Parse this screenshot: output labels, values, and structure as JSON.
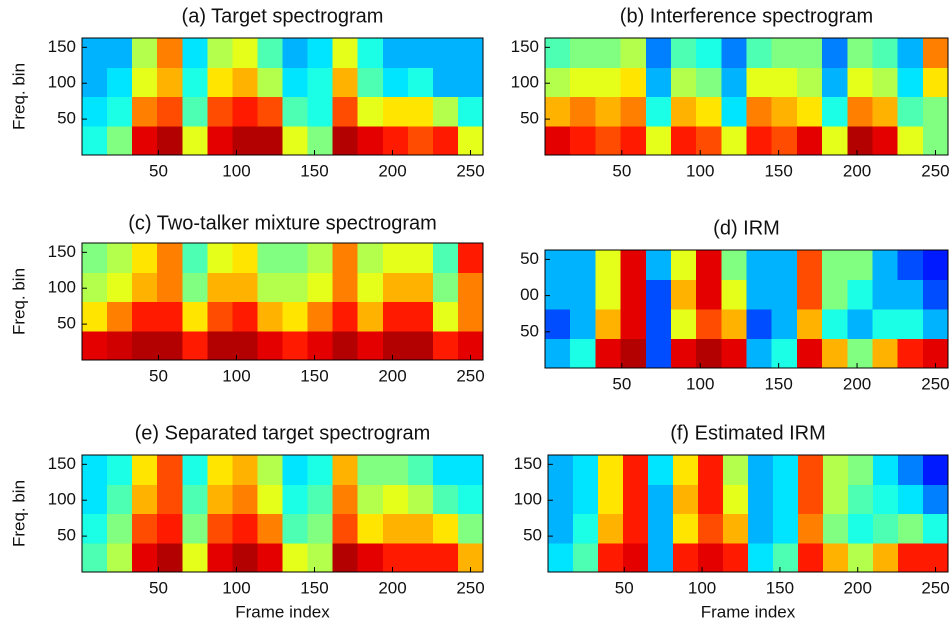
{
  "chart_data": [
    {
      "type": "heatmap",
      "title": "(a) Target spectrogram",
      "ylabel": "Freq. bin",
      "colormap": "jet",
      "xlim": [
        1,
        258
      ],
      "ylim": [
        0,
        163
      ],
      "xticks": [
        50,
        100,
        150,
        200,
        250
      ],
      "yticks": [
        50,
        100,
        150
      ],
      "z": [
        [
          0.4,
          0.5,
          0.9,
          0.95,
          0.6,
          0.9,
          0.95,
          0.95,
          0.6,
          0.5,
          0.95,
          0.9,
          0.85,
          0.8,
          0.85,
          0.6
        ],
        [
          0.35,
          0.4,
          0.75,
          0.8,
          0.45,
          0.8,
          0.85,
          0.8,
          0.45,
          0.4,
          0.8,
          0.6,
          0.65,
          0.65,
          0.55,
          0.4
        ],
        [
          0.3,
          0.35,
          0.6,
          0.7,
          0.4,
          0.65,
          0.7,
          0.55,
          0.35,
          0.4,
          0.7,
          0.45,
          0.35,
          0.4,
          0.3,
          0.3
        ],
        [
          0.3,
          0.3,
          0.55,
          0.75,
          0.35,
          0.55,
          0.6,
          0.45,
          0.3,
          0.35,
          0.6,
          0.4,
          0.3,
          0.3,
          0.3,
          0.3
        ]
      ]
    },
    {
      "type": "heatmap",
      "title": "(b) Interference spectrogram",
      "colormap": "jet",
      "xlim": [
        1,
        258
      ],
      "ylim": [
        0,
        163
      ],
      "xticks": [
        50,
        100,
        150,
        200,
        250
      ],
      "yticks": [
        50,
        100,
        150
      ],
      "z": [
        [
          0.9,
          0.85,
          0.8,
          0.85,
          0.6,
          0.85,
          0.8,
          0.6,
          0.85,
          0.8,
          0.9,
          0.6,
          0.95,
          0.9,
          0.6,
          0.5
        ],
        [
          0.7,
          0.75,
          0.7,
          0.75,
          0.4,
          0.7,
          0.65,
          0.35,
          0.75,
          0.7,
          0.65,
          0.4,
          0.75,
          0.7,
          0.45,
          0.5
        ],
        [
          0.55,
          0.6,
          0.6,
          0.65,
          0.3,
          0.55,
          0.5,
          0.3,
          0.6,
          0.6,
          0.55,
          0.3,
          0.6,
          0.55,
          0.35,
          0.65
        ],
        [
          0.45,
          0.5,
          0.5,
          0.55,
          0.25,
          0.45,
          0.4,
          0.25,
          0.45,
          0.5,
          0.5,
          0.25,
          0.5,
          0.45,
          0.3,
          0.75
        ]
      ]
    },
    {
      "type": "heatmap",
      "title": "(c) Two-talker mixture spectrogram",
      "ylabel": "Freq. bin",
      "colormap": "jet",
      "xlim": [
        1,
        258
      ],
      "ylim": [
        0,
        163
      ],
      "xticks": [
        50,
        100,
        150,
        200,
        250
      ],
      "yticks": [
        50,
        100,
        150
      ],
      "z": [
        [
          0.9,
          0.92,
          0.95,
          0.95,
          0.85,
          0.95,
          0.95,
          0.9,
          0.85,
          0.9,
          0.95,
          0.9,
          0.95,
          0.95,
          0.85,
          0.9
        ],
        [
          0.65,
          0.75,
          0.85,
          0.85,
          0.65,
          0.8,
          0.85,
          0.7,
          0.65,
          0.75,
          0.85,
          0.7,
          0.85,
          0.85,
          0.6,
          0.75
        ],
        [
          0.55,
          0.6,
          0.7,
          0.75,
          0.5,
          0.7,
          0.7,
          0.55,
          0.55,
          0.6,
          0.75,
          0.6,
          0.7,
          0.7,
          0.5,
          0.75
        ],
        [
          0.5,
          0.55,
          0.65,
          0.75,
          0.45,
          0.6,
          0.65,
          0.5,
          0.5,
          0.55,
          0.75,
          0.55,
          0.6,
          0.6,
          0.45,
          0.85
        ]
      ]
    },
    {
      "type": "heatmap",
      "title": "(d) IRM",
      "colormap": "jet",
      "xlim": [
        1,
        258
      ],
      "ylim": [
        0,
        163
      ],
      "xticks": [
        50,
        100,
        150,
        200,
        250
      ],
      "yticks": [
        50,
        {
          "value": 100,
          "label": "00"
        },
        {
          "value": 150,
          "label": "50"
        }
      ],
      "z": [
        [
          0.3,
          0.4,
          0.9,
          0.95,
          0.2,
          0.9,
          0.95,
          0.9,
          0.3,
          0.4,
          0.9,
          0.7,
          0.5,
          0.7,
          0.85,
          0.9
        ],
        [
          0.2,
          0.3,
          0.7,
          0.9,
          0.2,
          0.6,
          0.8,
          0.7,
          0.2,
          0.3,
          0.7,
          0.4,
          0.3,
          0.4,
          0.4,
          0.3
        ],
        [
          0.3,
          0.3,
          0.6,
          0.9,
          0.2,
          0.7,
          0.9,
          0.6,
          0.3,
          0.3,
          0.8,
          0.5,
          0.4,
          0.3,
          0.3,
          0.2
        ],
        [
          0.3,
          0.3,
          0.6,
          0.9,
          0.3,
          0.6,
          0.9,
          0.5,
          0.3,
          0.3,
          0.8,
          0.5,
          0.5,
          0.3,
          0.2,
          0.15
        ]
      ]
    },
    {
      "type": "heatmap",
      "title": "(e) Separated target spectrogram",
      "ylabel": "Freq. bin",
      "xlabel": "Frame index",
      "colormap": "jet",
      "xlim": [
        1,
        258
      ],
      "ylim": [
        0,
        163
      ],
      "xticks": [
        50,
        100,
        150,
        200,
        250
      ],
      "yticks": [
        50,
        100,
        150
      ],
      "z": [
        [
          0.45,
          0.55,
          0.9,
          0.95,
          0.6,
          0.9,
          0.95,
          0.9,
          0.6,
          0.55,
          0.95,
          0.9,
          0.85,
          0.85,
          0.85,
          0.7
        ],
        [
          0.4,
          0.5,
          0.8,
          0.85,
          0.5,
          0.8,
          0.85,
          0.75,
          0.45,
          0.5,
          0.8,
          0.65,
          0.7,
          0.7,
          0.65,
          0.5
        ],
        [
          0.35,
          0.45,
          0.7,
          0.8,
          0.45,
          0.7,
          0.75,
          0.6,
          0.4,
          0.45,
          0.75,
          0.55,
          0.6,
          0.55,
          0.45,
          0.4
        ],
        [
          0.35,
          0.4,
          0.65,
          0.8,
          0.4,
          0.65,
          0.7,
          0.55,
          0.35,
          0.4,
          0.7,
          0.5,
          0.5,
          0.45,
          0.35,
          0.35
        ]
      ]
    },
    {
      "type": "heatmap",
      "title": "(f) Estimated IRM",
      "xlabel": "Frame index",
      "colormap": "jet",
      "xlim": [
        1,
        258
      ],
      "ylim": [
        0,
        163
      ],
      "xticks": [
        50,
        100,
        150,
        200,
        250
      ],
      "yticks": [
        50,
        100,
        150
      ],
      "z": [
        [
          0.35,
          0.45,
          0.85,
          0.9,
          0.3,
          0.85,
          0.9,
          0.85,
          0.35,
          0.45,
          0.85,
          0.7,
          0.55,
          0.7,
          0.85,
          0.85
        ],
        [
          0.3,
          0.4,
          0.7,
          0.85,
          0.3,
          0.65,
          0.8,
          0.7,
          0.3,
          0.35,
          0.75,
          0.5,
          0.4,
          0.45,
          0.5,
          0.4
        ],
        [
          0.3,
          0.35,
          0.65,
          0.85,
          0.3,
          0.7,
          0.85,
          0.6,
          0.3,
          0.35,
          0.8,
          0.55,
          0.45,
          0.4,
          0.35,
          0.25
        ],
        [
          0.3,
          0.35,
          0.65,
          0.85,
          0.35,
          0.65,
          0.85,
          0.55,
          0.3,
          0.35,
          0.8,
          0.55,
          0.5,
          0.35,
          0.25,
          0.15
        ]
      ]
    }
  ]
}
